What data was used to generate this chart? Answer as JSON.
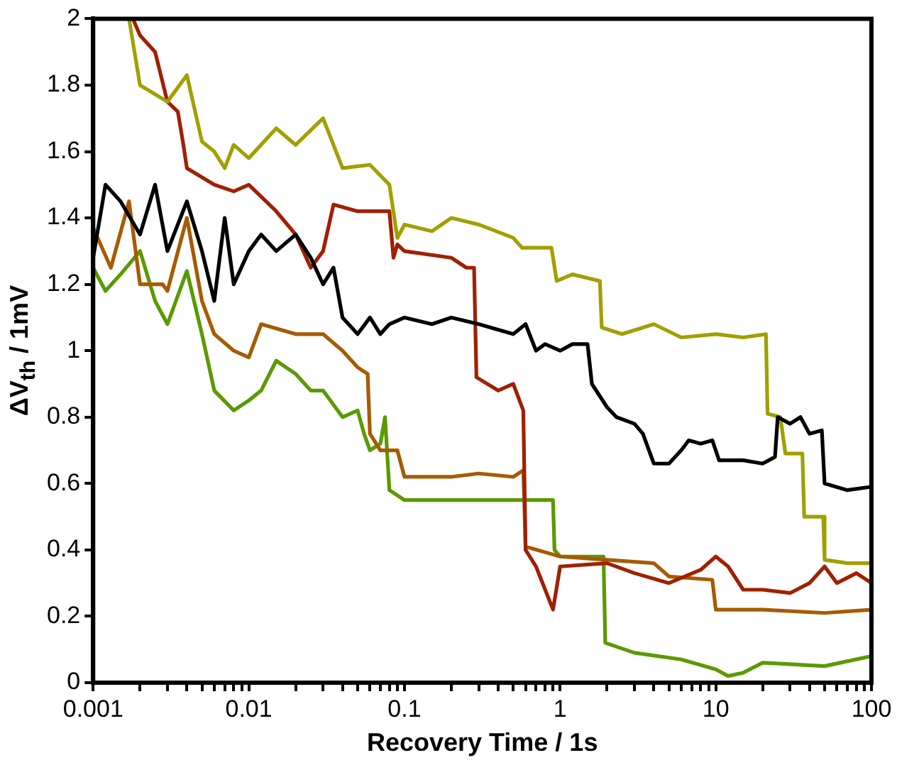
{
  "chart_data": {
    "type": "line",
    "xlabel": "Recovery Time / 1s",
    "ylabel": "ΔV$_{th}$ / 1mV",
    "log": "x",
    "grid": false,
    "legend": false,
    "marker": "none",
    "line_style": "solid",
    "xlim": [
      0.001,
      100
    ],
    "ylim": [
      0,
      2
    ],
    "xticks": [
      0.001,
      {
        "value": 0.002,
        "label": null
      },
      {
        "value": 0.003,
        "label": null
      },
      {
        "value": 0.004,
        "label": null
      },
      {
        "value": 0.005,
        "label": null
      },
      {
        "value": 0.006,
        "label": null
      },
      {
        "value": 0.007,
        "label": null
      },
      {
        "value": 0.008,
        "label": null
      },
      {
        "value": 0.009,
        "label": null
      },
      0.01,
      {
        "value": 0.02,
        "label": null
      },
      {
        "value": 0.03,
        "label": null
      },
      {
        "value": 0.04,
        "label": null
      },
      {
        "value": 0.05,
        "label": null
      },
      {
        "value": 0.06,
        "label": null
      },
      {
        "value": 0.07,
        "label": null
      },
      {
        "value": 0.08,
        "label": null
      },
      {
        "value": 0.09,
        "label": null
      },
      0.1,
      {
        "value": 0.2,
        "label": null
      },
      {
        "value": 0.3,
        "label": null
      },
      {
        "value": 0.4,
        "label": null
      },
      {
        "value": 0.5,
        "label": null
      },
      {
        "value": 0.6,
        "label": null
      },
      {
        "value": 0.7,
        "label": null
      },
      {
        "value": 0.8,
        "label": null
      },
      {
        "value": 0.9,
        "label": null
      },
      1,
      {
        "value": 2,
        "label": null
      },
      {
        "value": 3,
        "label": null
      },
      {
        "value": 4,
        "label": null
      },
      {
        "value": 5,
        "label": null
      },
      {
        "value": 6,
        "label": null
      },
      {
        "value": 7,
        "label": null
      },
      {
        "value": 8,
        "label": null
      },
      {
        "value": 9,
        "label": null
      },
      10,
      {
        "value": 20,
        "label": null
      },
      {
        "value": 30,
        "label": null
      },
      {
        "value": 40,
        "label": null
      },
      {
        "value": 50,
        "label": null
      },
      {
        "value": 60,
        "label": null
      },
      {
        "value": 70,
        "label": null
      },
      {
        "value": 80,
        "label": null
      },
      {
        "value": 90,
        "label": null
      },
      100
    ],
    "yticks": [
      0,
      0.2,
      0.4,
      0.6,
      0.8,
      1,
      1.2,
      1.4,
      1.6,
      1.8,
      2
    ],
    "series": [
      {
        "color": "#000000",
        "x": [
          0.001,
          0.0012,
          0.0015,
          0.002,
          0.0025,
          0.003,
          0.004,
          0.005,
          0.006,
          0.007,
          0.008,
          0.01,
          0.012,
          0.015,
          0.02,
          0.025,
          0.03,
          0.035,
          0.04,
          0.05,
          0.06,
          0.07,
          0.08,
          0.1,
          0.15,
          0.2,
          0.3,
          0.5,
          0.6,
          0.7,
          0.8,
          1,
          1.2,
          1.5,
          1.6,
          2,
          2.3,
          3,
          3.4,
          4,
          5,
          6,
          6.7,
          8,
          9.5,
          10.5,
          15,
          20,
          24,
          25,
          30,
          35,
          40,
          48,
          50,
          70,
          100
        ],
        "values": [
          1.28,
          1.5,
          1.45,
          1.35,
          1.5,
          1.3,
          1.45,
          1.3,
          1.15,
          1.4,
          1.2,
          1.3,
          1.35,
          1.3,
          1.35,
          1.28,
          1.2,
          1.25,
          1.1,
          1.05,
          1.1,
          1.05,
          1.08,
          1.1,
          1.08,
          1.1,
          1.08,
          1.05,
          1.08,
          1.0,
          1.02,
          1.0,
          1.02,
          1.02,
          0.9,
          0.83,
          0.8,
          0.78,
          0.75,
          0.66,
          0.66,
          0.7,
          0.73,
          0.72,
          0.73,
          0.67,
          0.67,
          0.66,
          0.68,
          0.8,
          0.78,
          0.8,
          0.75,
          0.76,
          0.6,
          0.58,
          0.59
        ]
      },
      {
        "color": "#a0a000",
        "x": [
          0.0017,
          0.002,
          0.003,
          0.004,
          0.005,
          0.006,
          0.007,
          0.008,
          0.01,
          0.015,
          0.02,
          0.03,
          0.04,
          0.06,
          0.08,
          0.09,
          0.1,
          0.15,
          0.2,
          0.3,
          0.5,
          0.57,
          0.88,
          0.95,
          1.2,
          1.8,
          1.85,
          2.5,
          4,
          6,
          10,
          15,
          21,
          21.5,
          26,
          28,
          36,
          37,
          49,
          50,
          70,
          100
        ],
        "values": [
          2.0,
          1.8,
          1.75,
          1.83,
          1.63,
          1.6,
          1.55,
          1.62,
          1.58,
          1.67,
          1.62,
          1.7,
          1.55,
          1.56,
          1.5,
          1.34,
          1.38,
          1.36,
          1.4,
          1.38,
          1.34,
          1.31,
          1.31,
          1.21,
          1.23,
          1.21,
          1.07,
          1.05,
          1.08,
          1.04,
          1.05,
          1.04,
          1.05,
          0.81,
          0.8,
          0.69,
          0.69,
          0.5,
          0.5,
          0.37,
          0.36,
          0.36
        ]
      },
      {
        "color": "#a02000",
        "x": [
          0.0018,
          0.002,
          0.0025,
          0.003,
          0.0035,
          0.0038,
          0.004,
          0.006,
          0.008,
          0.01,
          0.015,
          0.02,
          0.025,
          0.03,
          0.035,
          0.05,
          0.08,
          0.085,
          0.09,
          0.1,
          0.2,
          0.25,
          0.28,
          0.29,
          0.4,
          0.5,
          0.58,
          0.6,
          0.7,
          0.9,
          1,
          2,
          3,
          5,
          8,
          10,
          12,
          15,
          20,
          30,
          40,
          50,
          60,
          80,
          100
        ],
        "values": [
          2.0,
          1.95,
          1.9,
          1.75,
          1.72,
          1.62,
          1.55,
          1.5,
          1.48,
          1.5,
          1.42,
          1.35,
          1.25,
          1.3,
          1.44,
          1.42,
          1.42,
          1.28,
          1.32,
          1.3,
          1.28,
          1.25,
          1.25,
          0.92,
          0.88,
          0.9,
          0.82,
          0.4,
          0.35,
          0.22,
          0.35,
          0.36,
          0.33,
          0.3,
          0.34,
          0.38,
          0.35,
          0.28,
          0.28,
          0.27,
          0.3,
          0.35,
          0.3,
          0.33,
          0.3
        ]
      },
      {
        "color": "#a85a00",
        "x": [
          0.001,
          0.0013,
          0.0017,
          0.002,
          0.0028,
          0.003,
          0.004,
          0.005,
          0.006,
          0.008,
          0.01,
          0.012,
          0.02,
          0.03,
          0.04,
          0.05,
          0.058,
          0.06,
          0.07,
          0.09,
          0.1,
          0.2,
          0.3,
          0.5,
          0.58,
          0.6,
          1,
          2,
          4,
          5,
          9.5,
          10,
          20,
          50,
          100
        ],
        "values": [
          1.37,
          1.25,
          1.45,
          1.2,
          1.2,
          1.18,
          1.4,
          1.15,
          1.05,
          1.0,
          0.98,
          1.08,
          1.05,
          1.05,
          1.0,
          0.95,
          0.93,
          0.75,
          0.7,
          0.7,
          0.62,
          0.62,
          0.63,
          0.62,
          0.64,
          0.41,
          0.38,
          0.37,
          0.36,
          0.32,
          0.31,
          0.22,
          0.22,
          0.21,
          0.22
        ]
      },
      {
        "color": "#5a9a00",
        "x": [
          0.001,
          0.0012,
          0.0015,
          0.002,
          0.0025,
          0.003,
          0.004,
          0.005,
          0.006,
          0.008,
          0.01,
          0.012,
          0.015,
          0.02,
          0.025,
          0.03,
          0.04,
          0.05,
          0.055,
          0.06,
          0.07,
          0.075,
          0.08,
          0.1,
          0.3,
          0.9,
          0.92,
          1,
          1.9,
          1.95,
          3,
          6,
          10,
          12,
          15,
          20,
          50,
          100
        ],
        "values": [
          1.25,
          1.18,
          1.23,
          1.3,
          1.15,
          1.08,
          1.24,
          1.05,
          0.88,
          0.82,
          0.85,
          0.88,
          0.97,
          0.93,
          0.88,
          0.88,
          0.8,
          0.82,
          0.75,
          0.7,
          0.72,
          0.8,
          0.58,
          0.55,
          0.55,
          0.55,
          0.4,
          0.38,
          0.38,
          0.12,
          0.09,
          0.07,
          0.04,
          0.02,
          0.03,
          0.06,
          0.05,
          0.08
        ]
      }
    ]
  }
}
